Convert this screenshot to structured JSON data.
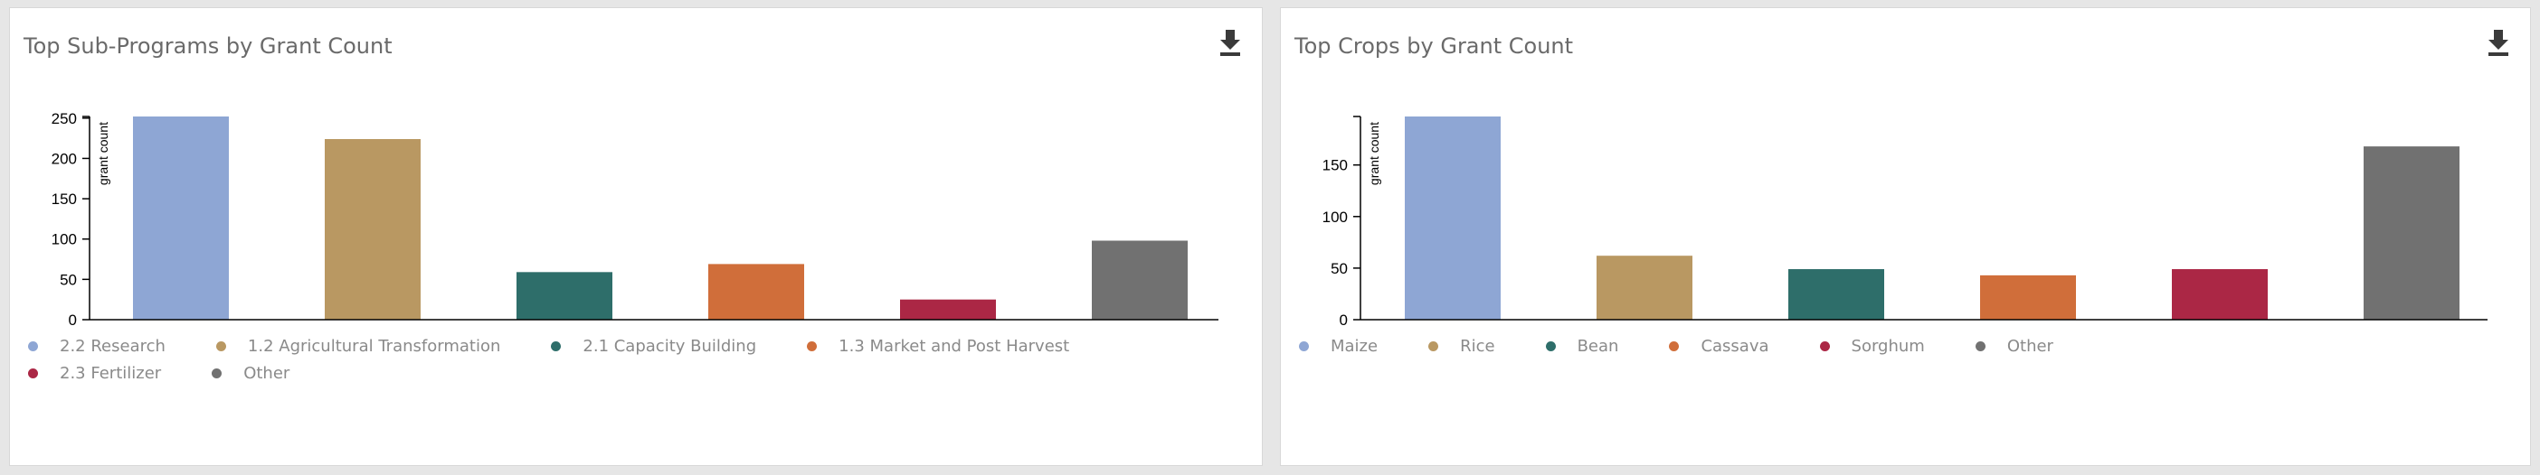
{
  "chart_data": [
    {
      "type": "bar",
      "title": "Top Sub-Programs by Grant Count",
      "ylabel": "grant count",
      "xlabel": "",
      "categories": [
        "2.2 Research",
        "1.2 Agricultural Transformation",
        "2.1 Capacity Building",
        "1.3 Market and Post Harvest",
        "2.3 Fertilizer",
        "Other"
      ],
      "values": [
        252,
        224,
        59,
        69,
        25,
        98
      ],
      "colors": [
        "#8ea6d4",
        "#b99862",
        "#2e6e6a",
        "#d06e3a",
        "#ab2745",
        "#717171"
      ],
      "yticks": [
        0,
        50,
        100,
        150,
        200,
        250
      ],
      "ylim": [
        0,
        252
      ],
      "legend": "bottom",
      "grid": false,
      "download_icon": "download-icon"
    },
    {
      "type": "bar",
      "title": "Top Crops by Grant Count",
      "ylabel": "grant count",
      "xlabel": "",
      "categories": [
        "Maize",
        "Rice",
        "Bean",
        "Cassava",
        "Sorghum",
        "Other"
      ],
      "values": [
        197,
        62,
        49,
        43,
        49,
        168
      ],
      "colors": [
        "#8ea6d4",
        "#b99862",
        "#2e6e6a",
        "#d06e3a",
        "#ab2745",
        "#717171"
      ],
      "yticks": [
        0,
        50,
        100,
        150
      ],
      "ylim": [
        0,
        197
      ],
      "legend": "bottom",
      "grid": false,
      "download_icon": "download-icon"
    }
  ]
}
